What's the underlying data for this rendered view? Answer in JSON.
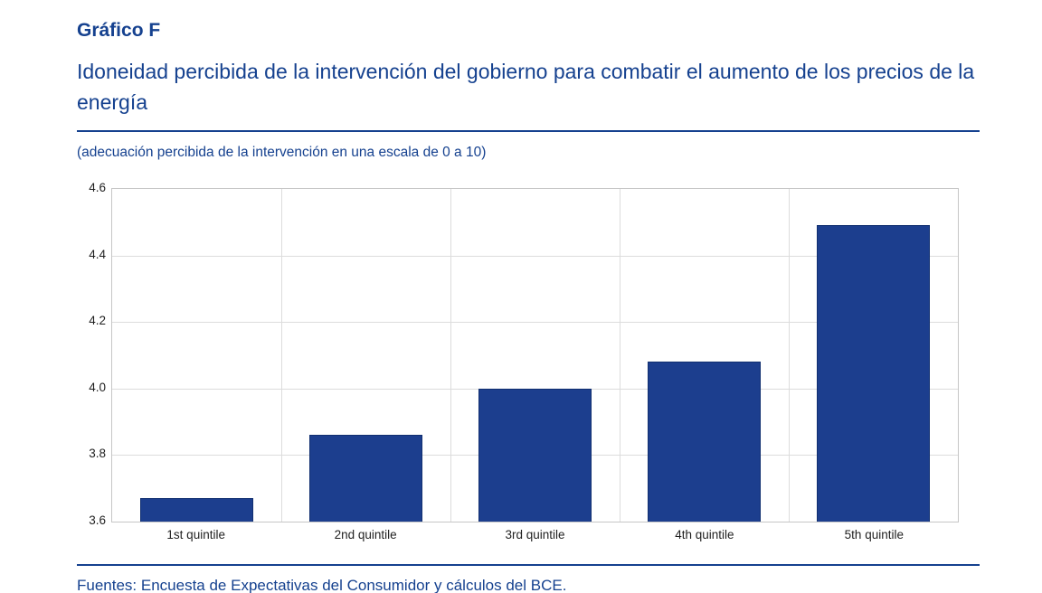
{
  "header": {
    "label": "Gráfico F",
    "title": "Idoneidad percibida de la intervención del gobierno para combatir el aumento de los precios de la energía",
    "subtitle": "(adecuación percibida de la intervención en una escala de 0 a 10)"
  },
  "chart_data": {
    "type": "bar",
    "categories": [
      "1st quintile",
      "2nd quintile",
      "3rd quintile",
      "4th quintile",
      "5th quintile"
    ],
    "values": [
      3.67,
      3.86,
      4.0,
      4.08,
      4.49
    ],
    "title": "Idoneidad percibida de la intervención del gobierno para combatir el aumento de los precios de la energía",
    "xlabel": "",
    "ylabel": "adecuación percibida de la intervención en una escala de 0 a 10",
    "ylim": [
      3.6,
      4.6
    ],
    "yticks": [
      3.6,
      3.8,
      4.0,
      4.2,
      4.4,
      4.6
    ],
    "grid": true,
    "legend": "none",
    "bar_color": "#1c3e8e"
  },
  "footer": {
    "sources": "Fuentes: Encuesta de Expectativas del Consumidor y cálculos del BCE."
  },
  "colors": {
    "accent_blue": "#15418f",
    "bar_blue": "#1c3e8e",
    "gridline": "#dcdcdc",
    "plot_border": "#c6c6c6",
    "tick_text": "#1f1f1f"
  }
}
